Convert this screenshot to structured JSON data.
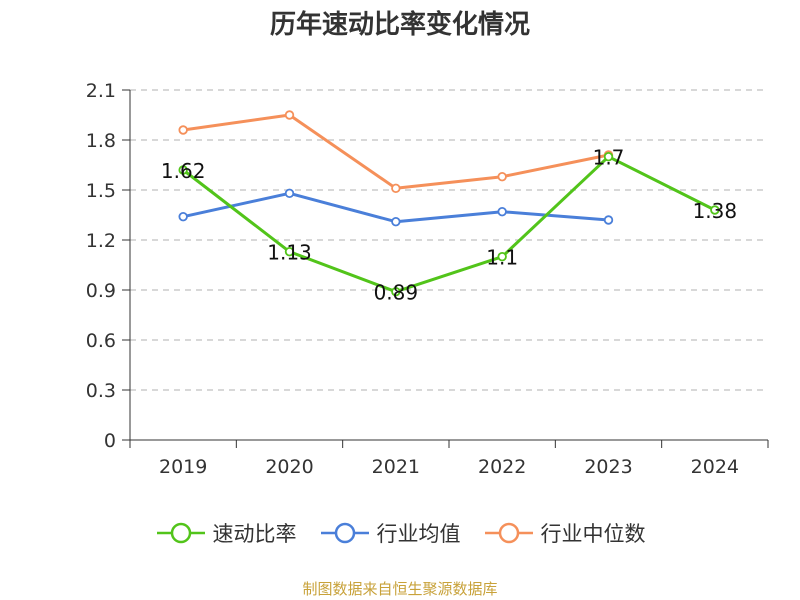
{
  "chart_data": {
    "type": "line",
    "title": "历年速动比率变化情况",
    "categories": [
      "2019",
      "2020",
      "2021",
      "2022",
      "2023",
      "2024"
    ],
    "ylim": [
      0,
      2.1
    ],
    "yticks": [
      "0",
      "0.3",
      "0.6",
      "0.9",
      "1.2",
      "1.5",
      "1.8",
      "2.1"
    ],
    "grid": true,
    "legend_position": "bottom",
    "series": [
      {
        "name": "速动比率",
        "color": "#52c41a",
        "values": [
          1.62,
          1.13,
          0.89,
          1.1,
          1.7,
          1.38
        ],
        "labels": [
          "1.62",
          "1.13",
          "0.89",
          "1.1",
          "1.7",
          "1.38"
        ]
      },
      {
        "name": "行业均值",
        "color": "#4a7fd9",
        "values": [
          1.34,
          1.48,
          1.31,
          1.37,
          1.32,
          null
        ]
      },
      {
        "name": "行业中位数",
        "color": "#f5905a",
        "values": [
          1.86,
          1.95,
          1.51,
          1.58,
          1.71,
          null
        ]
      }
    ]
  },
  "footer": {
    "text": "制图数据来自恒生聚源数据库",
    "color": "#c8a23a"
  }
}
